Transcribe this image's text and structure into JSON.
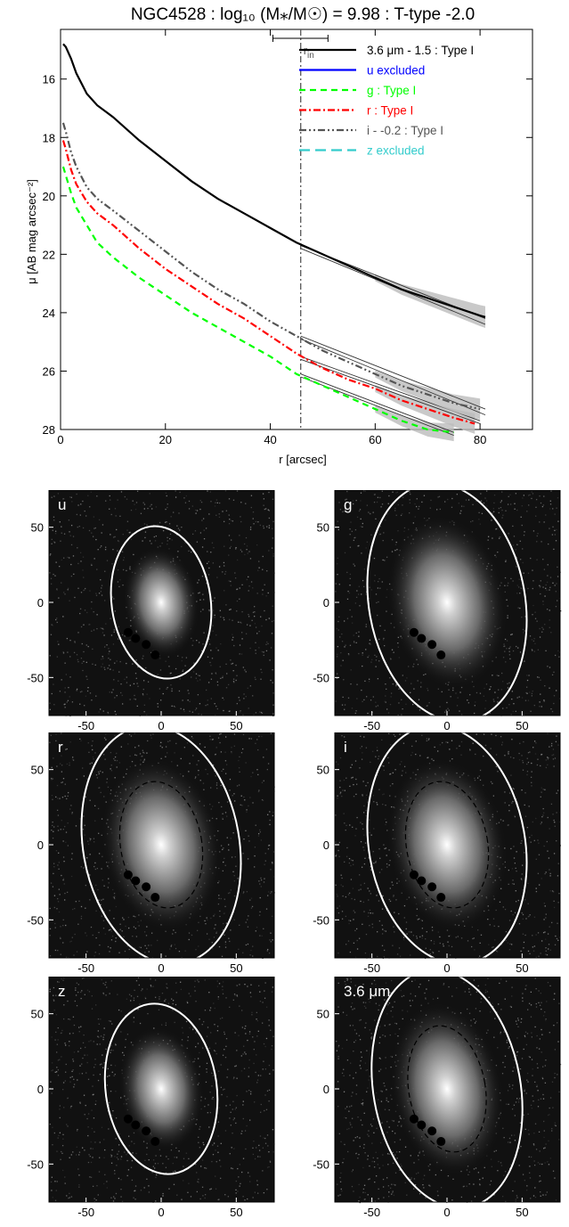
{
  "chart_data": [
    {
      "type": "line",
      "title": "NGC4528 : log₁₀ (M⁎/M☉) = 9.98 : T-type -2.0",
      "xlabel": "r [arcsec]",
      "ylabel": "μ [AB mag arcsec⁻²]",
      "xlim": [
        0,
        90
      ],
      "ylim": [
        28,
        14.3
      ],
      "y_inverted": true,
      "xticks": [
        0,
        20,
        40,
        60,
        80
      ],
      "yticks": [
        16,
        18,
        20,
        22,
        24,
        26,
        28
      ],
      "annotations": {
        "r_in_label": "r",
        "r_in_sub": "in",
        "r_in_value": 45.8,
        "r_in_errbar": [
          40.5,
          51
        ]
      },
      "legend_position": "top-right",
      "series": [
        {
          "name": "3.6 μm - 1.5 : Type I",
          "color": "#000000",
          "dash": "solid",
          "x": [
            0.5,
            1,
            2,
            3,
            5,
            7,
            10,
            15,
            20,
            25,
            30,
            35,
            40,
            45,
            50,
            55,
            60,
            65,
            70,
            75,
            80,
            81
          ],
          "y": [
            14.8,
            14.9,
            15.3,
            15.8,
            16.5,
            16.9,
            17.3,
            18.1,
            18.8,
            19.5,
            20.1,
            20.6,
            21.1,
            21.6,
            22.0,
            22.4,
            22.8,
            23.2,
            23.5,
            23.8,
            24.1,
            24.15
          ],
          "fit_x": [
            45.8,
            81
          ],
          "fit_y": [
            [
              21.7,
              24.2
            ],
            [
              21.8,
              24.4
            ]
          ]
        },
        {
          "name": "u excluded",
          "color": "#0000ff",
          "dash": "solid",
          "x": [],
          "y": []
        },
        {
          "name": "g : Type I",
          "color": "#00ff00",
          "dash": "dashed",
          "x": [
            0.5,
            1,
            2,
            3,
            5,
            7,
            10,
            15,
            20,
            25,
            30,
            35,
            40,
            45,
            50,
            55,
            60,
            65,
            70,
            75
          ],
          "y": [
            19.0,
            19.3,
            19.9,
            20.4,
            21.0,
            21.6,
            22.1,
            22.8,
            23.4,
            24.0,
            24.5,
            25.0,
            25.5,
            26.1,
            26.5,
            26.9,
            27.3,
            27.7,
            28.0,
            28.1
          ],
          "fit_x": [
            45.8,
            75
          ],
          "fit_y": [
            [
              26.1,
              28.1
            ],
            [
              26.2,
              28.2
            ]
          ]
        },
        {
          "name": "r : Type I",
          "color": "#ff0000",
          "dash": "dashdot",
          "x": [
            0.5,
            1,
            2,
            3,
            5,
            7,
            10,
            15,
            20,
            25,
            30,
            35,
            40,
            45,
            50,
            55,
            60,
            65,
            70,
            75,
            79
          ],
          "y": [
            18.1,
            18.4,
            19.1,
            19.6,
            20.2,
            20.6,
            21.0,
            21.8,
            22.5,
            23.1,
            23.7,
            24.2,
            24.8,
            25.4,
            25.9,
            26.3,
            26.6,
            27.0,
            27.3,
            27.6,
            27.8
          ],
          "fit_x": [
            45.8,
            80
          ],
          "fit_y": [
            [
              25.5,
              27.7
            ],
            [
              25.6,
              27.8
            ]
          ]
        },
        {
          "name": "i - -0.2 : Type I",
          "color": "#555555",
          "dash": "dashdotdot",
          "x": [
            0.5,
            1,
            2,
            3,
            5,
            7,
            10,
            15,
            20,
            25,
            30,
            35,
            40,
            45,
            50,
            55,
            60,
            65,
            70,
            75,
            80
          ],
          "y": [
            17.5,
            17.8,
            18.5,
            19.0,
            19.7,
            20.1,
            20.5,
            21.2,
            21.9,
            22.6,
            23.2,
            23.7,
            24.3,
            24.8,
            25.3,
            25.7,
            26.1,
            26.5,
            26.8,
            27.1,
            27.3
          ],
          "fit_x": [
            45.8,
            81
          ],
          "fit_y": [
            [
              24.8,
              27.3
            ],
            [
              24.9,
              27.5
            ]
          ]
        },
        {
          "name": "z excluded",
          "color": "#33cccc",
          "dash": "longdash",
          "x": [],
          "y": []
        }
      ]
    },
    {
      "type": "image",
      "panels": [
        {
          "label": "u",
          "xticks": [
            "-50",
            "0",
            "50"
          ],
          "yticks": [
            "50",
            "0",
            "-50"
          ],
          "ellipse": {
            "rx_as": 33,
            "ry_as": 51,
            "rot_deg": -8
          },
          "inner_ellipse": false
        },
        {
          "label": "g",
          "xticks": [
            "-50",
            "0",
            "50"
          ],
          "yticks": [
            "50",
            "0",
            "-50"
          ],
          "ellipse": {
            "rx_as": 52,
            "ry_as": 80,
            "rot_deg": -10
          },
          "inner_ellipse": false
        },
        {
          "label": "r",
          "xticks": [
            "-50",
            "0",
            "50"
          ],
          "yticks": [
            "50",
            "0",
            "-50"
          ],
          "ellipse": {
            "rx_as": 52,
            "ry_as": 80,
            "rot_deg": -10
          },
          "inner_ellipse": true
        },
        {
          "label": "i",
          "xticks": [
            "-50",
            "0",
            "50"
          ],
          "yticks": [
            "50",
            "0",
            "-50"
          ],
          "ellipse": {
            "rx_as": 52,
            "ry_as": 80,
            "rot_deg": -10
          },
          "inner_ellipse": true
        },
        {
          "label": "z",
          "xticks": [
            "-50",
            "0",
            "50"
          ],
          "yticks": [
            "50",
            "0",
            "-50"
          ],
          "ellipse": {
            "rx_as": 37,
            "ry_as": 57,
            "rot_deg": -8
          },
          "inner_ellipse": false
        },
        {
          "label": "3.6 μm",
          "xticks": [
            "-50",
            "0",
            "50"
          ],
          "yticks": [
            "50",
            "0",
            "-50"
          ],
          "ellipse": {
            "rx_as": 49,
            "ry_as": 80,
            "rot_deg": -10
          },
          "inner_ellipse": true
        }
      ]
    }
  ]
}
